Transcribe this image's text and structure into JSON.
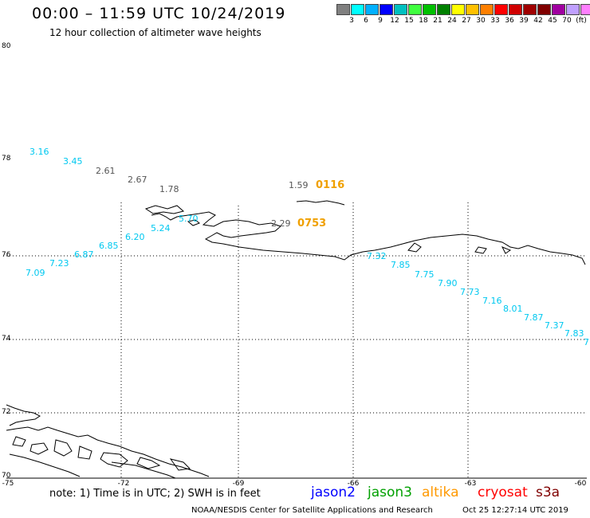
{
  "header": {
    "title": "00:00 – 11:59 UTC 10/24/2019",
    "subtitle": "12 hour collection of altimeter wave heights"
  },
  "scale": {
    "colors": [
      "#808080",
      "#00ffff",
      "#00b0ff",
      "#0000ff",
      "#00c0c0",
      "#40ff40",
      "#00c000",
      "#008000",
      "#ffff00",
      "#ffc000",
      "#ff8000",
      "#ff0000",
      "#d00000",
      "#a00000",
      "#800000",
      "#a000a0",
      "#c0a0ff",
      "#ff80ff",
      "#000000"
    ],
    "labels": [
      "3",
      "6",
      "9",
      "12",
      "15",
      "18",
      "21",
      "24",
      "27",
      "30",
      "33",
      "36",
      "39",
      "42",
      "45",
      "70",
      "(ft)"
    ]
  },
  "axes": {
    "lat_labels": [
      "80",
      "78",
      "76",
      "74",
      "72",
      "70"
    ],
    "lon_labels": [
      "-75",
      "-72",
      "-69",
      "-66",
      "-63",
      "-60"
    ]
  },
  "wave_heights": {
    "cyan": [
      "3.16",
      "3.45",
      "5.70",
      "5.24",
      "6.20",
      "6.85",
      "6.87",
      "7.23",
      "7.09",
      "7.32",
      "7.85",
      "7.75",
      "7.90",
      "7.73",
      "7.16",
      "8.01",
      "7.87",
      "7.37",
      "7.83",
      "7"
    ],
    "gray": [
      "2.61",
      "2.67",
      "1.78",
      "1.59",
      "2.29"
    ]
  },
  "pass_times": [
    "0116",
    "0753"
  ],
  "footer": {
    "note": "note: 1) Time is in UTC; 2) SWH is in feet",
    "satellites": [
      {
        "name": "jason2",
        "color": "#0000ff"
      },
      {
        "name": "jason3",
        "color": "#00a000"
      },
      {
        "name": "altika",
        "color": "#ff9900"
      },
      {
        "name": "cryosat",
        "color": "#ff0000"
      },
      {
        "name": "s3a",
        "color": "#800000"
      }
    ],
    "credit": "NOAA/NESDIS Center for Satellite Applications and Research",
    "timestamp": "Oct 25 12:27:14 UTC 2019"
  }
}
